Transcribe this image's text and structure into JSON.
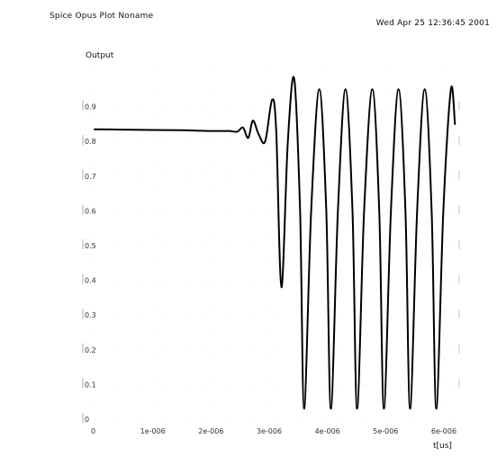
{
  "header": {
    "app_title": "Spice Opus Plot   Noname",
    "timestamp": "Wed Apr 25 12:36:45 2001"
  },
  "chart_data": {
    "type": "line",
    "title": "",
    "ylabel": "Output",
    "xlabel": "t[us]",
    "xlim": [
      0,
      6e-06
    ],
    "ylim": [
      0,
      1.0
    ],
    "x_ticks": [
      "0",
      "1e-006",
      "2e-006",
      "3e-006",
      "4e-006",
      "5e-006",
      "6e-006"
    ],
    "y_ticks": [
      "0",
      "0.1",
      "0.2",
      "0.3",
      "0.4",
      "0.5",
      "0.6",
      "0.7",
      "0.8",
      "0.9"
    ],
    "grid": true,
    "line_color": "#000000",
    "series": [
      {
        "values": [
          [
            0.0,
            0.835
          ],
          [
            5e-07,
            0.834
          ],
          [
            1e-06,
            0.833
          ],
          [
            1.5e-06,
            0.832
          ],
          [
            2e-06,
            0.83
          ],
          [
            2.3e-06,
            0.83
          ],
          [
            2.45e-06,
            0.828
          ],
          [
            2.55e-06,
            0.84
          ],
          [
            2.64e-06,
            0.81
          ],
          [
            2.72e-06,
            0.86
          ],
          [
            2.82e-06,
            0.82
          ],
          [
            2.93e-06,
            0.8
          ],
          [
            3.05e-06,
            0.92
          ],
          [
            3.12e-06,
            0.83
          ],
          [
            3.21e-06,
            0.38
          ],
          [
            3.32e-06,
            0.8
          ],
          [
            3.43e-06,
            0.98
          ],
          [
            3.53e-06,
            0.6
          ],
          [
            3.6e-06,
            0.03
          ],
          [
            3.72e-06,
            0.6
          ],
          [
            3.86e-06,
            0.95
          ],
          [
            3.98e-06,
            0.6
          ],
          [
            4.06e-06,
            0.03
          ],
          [
            4.18e-06,
            0.6
          ],
          [
            4.31e-06,
            0.95
          ],
          [
            4.43e-06,
            0.6
          ],
          [
            4.51e-06,
            0.03
          ],
          [
            4.63e-06,
            0.6
          ],
          [
            4.77e-06,
            0.95
          ],
          [
            4.89e-06,
            0.6
          ],
          [
            4.97e-06,
            0.03
          ],
          [
            5.09e-06,
            0.6
          ],
          [
            5.22e-06,
            0.95
          ],
          [
            5.34e-06,
            0.6
          ],
          [
            5.42e-06,
            0.03
          ],
          [
            5.54e-06,
            0.6
          ],
          [
            5.67e-06,
            0.95
          ],
          [
            5.79e-06,
            0.6
          ],
          [
            5.87e-06,
            0.03
          ],
          [
            5.99e-06,
            0.6
          ],
          [
            6.12e-06,
            0.95
          ],
          [
            6.19e-06,
            0.85
          ]
        ]
      }
    ]
  }
}
